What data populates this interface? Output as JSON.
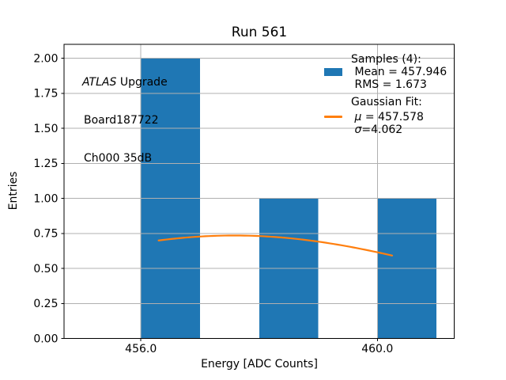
{
  "chart_data": {
    "type": "histogram",
    "title": "Run 561",
    "xlabel": "Energy [ADC Counts]",
    "ylabel": "Entries",
    "xlim": [
      454.7,
      461.3
    ],
    "ylim": [
      0,
      2.1
    ],
    "grid": true,
    "xticks": [
      {
        "value": 456.0,
        "label": "456.0"
      },
      {
        "value": 460.0,
        "label": "460.0"
      }
    ],
    "yticks": [
      {
        "value": 0.0,
        "label": "0.00"
      },
      {
        "value": 0.25,
        "label": "0.25"
      },
      {
        "value": 0.5,
        "label": "0.50"
      },
      {
        "value": 0.75,
        "label": "0.75"
      },
      {
        "value": 1.0,
        "label": "1.00"
      },
      {
        "value": 1.25,
        "label": "1.25"
      },
      {
        "value": 1.5,
        "label": "1.50"
      },
      {
        "value": 1.75,
        "label": "1.75"
      },
      {
        "value": 2.0,
        "label": "2.00"
      }
    ],
    "bars": [
      {
        "x0": 456.0,
        "x1": 457.0,
        "count": 2
      },
      {
        "x0": 458.0,
        "x1": 459.0,
        "count": 1
      },
      {
        "x0": 460.0,
        "x1": 461.0,
        "count": 1
      }
    ],
    "bar_color": "#1f77b4",
    "stats": {
      "samples": 4,
      "mean": 457.946,
      "rms": 1.673
    },
    "fit_curve": {
      "type": "gaussian",
      "amplitude": 0.735,
      "mu": 457.578,
      "sigma": 4.062,
      "x_start": 456.3,
      "x_end": 460.25,
      "color": "#ff7f0e"
    }
  },
  "annotation": {
    "line1_italic": "ATLAS",
    "line1_rest": " Upgrade",
    "line2": "Board187722",
    "line3": "Ch000 35dB"
  },
  "legend": {
    "samples_header": "Samples (4):",
    "mean_label": "Mean = 457.946",
    "rms_label": "RMS = 1.673",
    "fit_header": "Gaussian Fit:",
    "mu_symbol": "μ",
    "mu_rest": " = 457.578",
    "sigma_symbol": "σ",
    "sigma_rest": "=4.062",
    "swatch_color": "#1f77b4",
    "line_color": "#ff7f0e"
  },
  "colors": {
    "background": "#ffffff",
    "grid": "#b0b0b0",
    "axis": "#000000",
    "text": "#000000"
  }
}
